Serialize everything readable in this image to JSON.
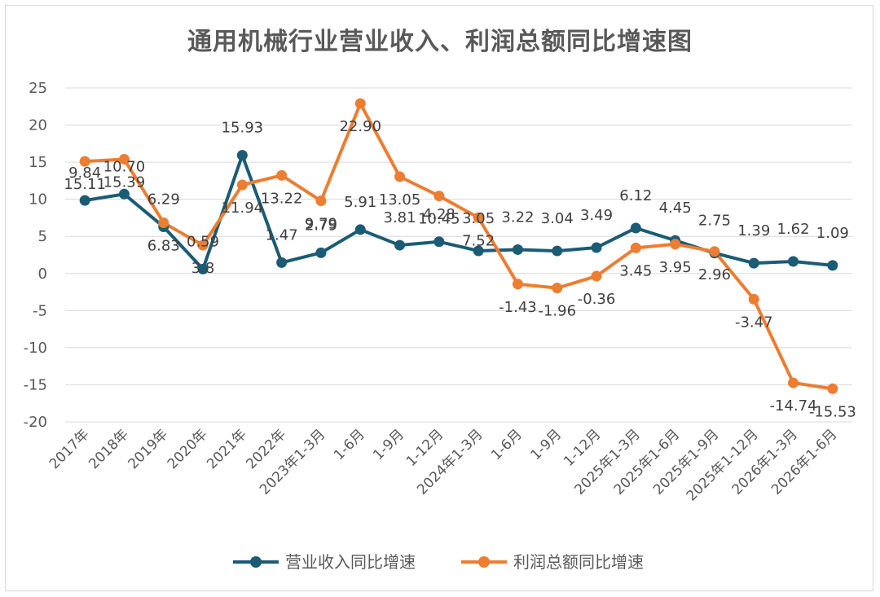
{
  "chart_data": {
    "type": "line",
    "title": "通用机械行业营业收入、利润总额同比增速图",
    "categories": [
      "2017年",
      "2018年",
      "2019年",
      "2020年",
      "2021年",
      "2022年",
      "2023年1-3月",
      "1-6月",
      "1-9月",
      "1-12月",
      "2024年1-3月",
      "1-6月",
      "1-9月",
      "1-12月",
      "2025年1-3月",
      "2025年1-6月",
      "2025年1-9月",
      "2025年1-12月",
      "2026年1-3月",
      "2026年1-6月"
    ],
    "ylim": [
      -20,
      25
    ],
    "yticks": [
      25,
      20,
      15,
      10,
      5,
      0,
      -5,
      -10,
      -15,
      -20
    ],
    "grid": true,
    "legend_position": "bottom",
    "series": [
      {
        "name": "营业收入同比增速",
        "color": "#1b5b74",
        "values": [
          9.84,
          10.7,
          6.29,
          0.59,
          15.93,
          1.47,
          2.79,
          5.91,
          3.81,
          4.28,
          3.05,
          3.22,
          3.04,
          3.49,
          6.12,
          4.45,
          2.75,
          1.39,
          1.62,
          1.09
        ],
        "labels": [
          "9.84",
          "10.70",
          "6.29",
          "0.59",
          "15.93",
          "1.47",
          "2.79",
          "5.91",
          "3.81",
          "4.28",
          "3.05",
          "3.22",
          "3.04",
          "3.49",
          "6.12",
          "4.45",
          "2.75",
          "1.39",
          "1.62",
          "1.09"
        ]
      },
      {
        "name": "利润总额同比增速",
        "color": "#ed7d31",
        "values": [
          15.11,
          15.39,
          6.83,
          3.8,
          11.94,
          13.22,
          9.79,
          22.9,
          13.05,
          10.45,
          7.52,
          -1.43,
          -1.96,
          -0.36,
          3.45,
          3.95,
          2.96,
          -3.47,
          -14.74,
          -15.53
        ],
        "labels": [
          "15.11",
          "15.39",
          "6.83",
          "3.8",
          "11.94",
          "13.22",
          "9.79",
          "22.90",
          "13.05",
          "10.45",
          "7.52",
          "-1.43",
          "-1.96",
          "-0.36",
          "3.45",
          "3.95",
          "2.96",
          "-3.47",
          "-14.74",
          "-15.53"
        ]
      }
    ]
  }
}
